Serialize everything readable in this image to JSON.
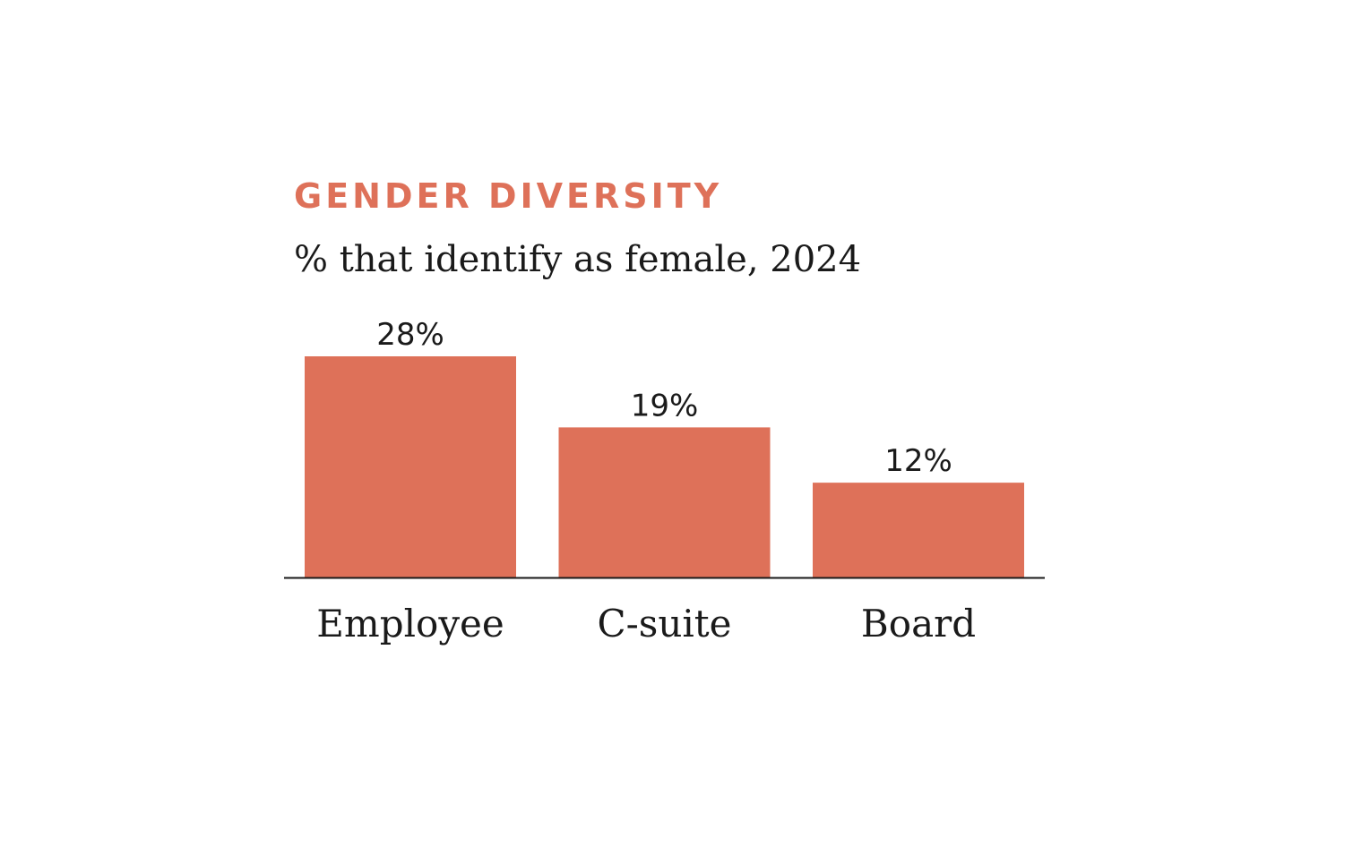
{
  "colors": {
    "accent": "#de7159",
    "bar": "#de7159",
    "text": "#1a1a1a",
    "axis": "#1a1a1a",
    "background": "#ffffff"
  },
  "chart_data": {
    "type": "bar",
    "title": "GENDER DIVERSITY",
    "subtitle": "% that identify as female, 2024",
    "categories": [
      "Employee",
      "C-suite",
      "Board"
    ],
    "values": [
      28,
      19,
      12
    ],
    "value_labels": [
      "28%",
      "19%",
      "12%"
    ],
    "unit": "%",
    "xlabel": "",
    "ylabel": "",
    "ylim": [
      0,
      28
    ],
    "grid": false,
    "legend": "none"
  }
}
